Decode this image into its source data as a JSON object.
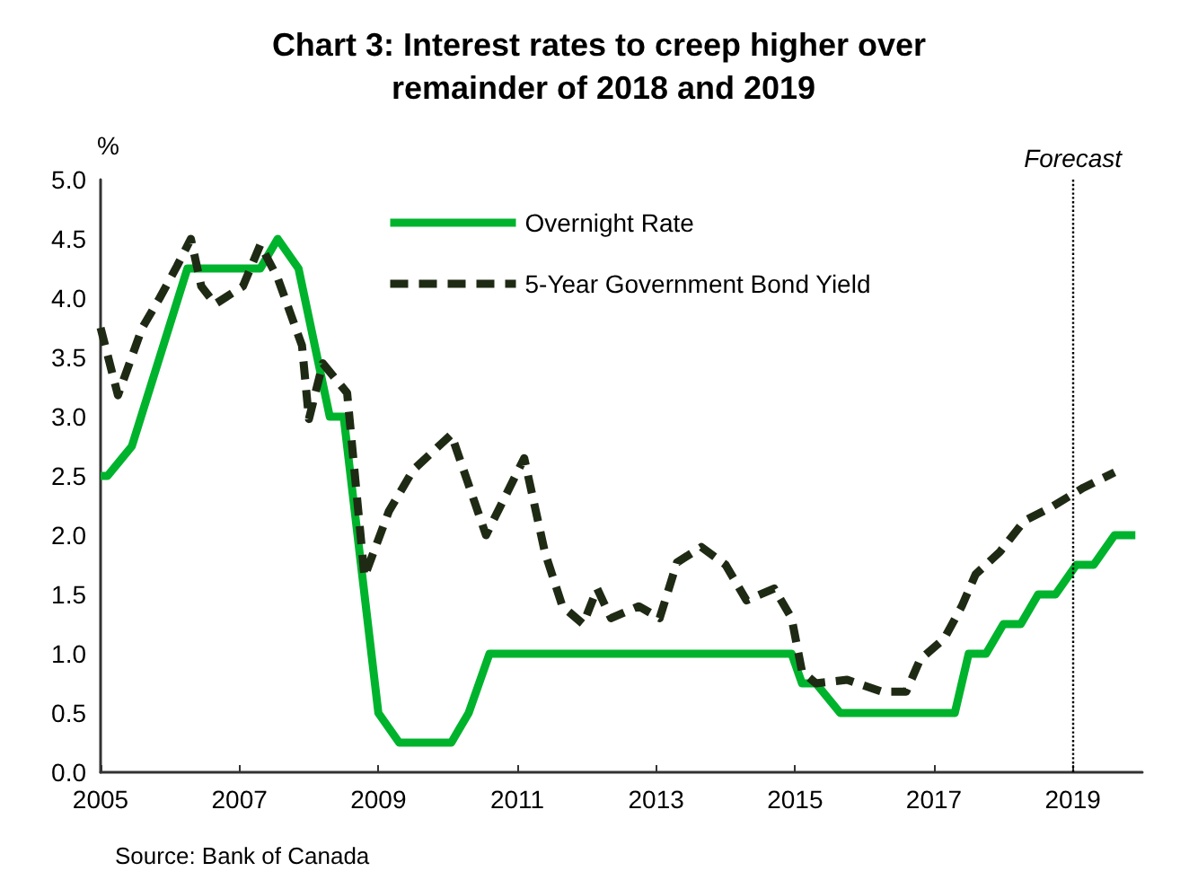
{
  "chart_data": {
    "type": "line",
    "title": "Chart 3: Interest rates to creep higher over remainder of 2018 and 2019",
    "ylabel": "%",
    "annotations": [
      "Source: Bank of Canada"
    ],
    "xlim": [
      2005,
      2020
    ],
    "xticks": [
      2005,
      2007,
      2009,
      2011,
      2013,
      2015,
      2017,
      2019
    ],
    "ylim": [
      0,
      5
    ],
    "yticks": [
      {
        "value": 0,
        "label": "0.0"
      },
      {
        "value": 0.5,
        "label": "0.5"
      },
      {
        "value": 1,
        "label": "1.0"
      },
      {
        "value": 1.5,
        "label": "1.5"
      },
      {
        "value": 2,
        "label": "2.0"
      },
      {
        "value": 2.5,
        "label": "2.5"
      },
      {
        "value": 3,
        "label": "3.0"
      },
      {
        "value": 3.5,
        "label": "3.5"
      },
      {
        "value": 4,
        "label": "4.0"
      },
      {
        "value": 4.5,
        "label": "4.5"
      },
      {
        "value": 5,
        "label": "5.0"
      }
    ],
    "grid": false,
    "legend": "top",
    "marker": "none",
    "ref_lines": [
      {
        "axis": "x",
        "value": 2019,
        "label": "Forecast",
        "color": "#000000",
        "line_style": "dotted"
      }
    ],
    "series": [
      {
        "name": "Overnight Rate",
        "color": "#00b32d",
        "line_style": "solid",
        "x": [
          2005,
          2005.1,
          2005.45,
          2006.25,
          2007.3,
          2007.55,
          2007.85,
          2008.3,
          2008.5,
          2009,
          2009.3,
          2010.05,
          2010.3,
          2010.6,
          2014.95,
          2015.1,
          2015.3,
          2015.65,
          2017.3,
          2017.5,
          2017.75,
          2018,
          2018.25,
          2018.5,
          2018.75,
          2019.05,
          2019.3,
          2019.6,
          2019.9
        ],
        "values": [
          2.5,
          2.5,
          2.75,
          4.25,
          4.25,
          4.5,
          4.25,
          3,
          3,
          0.5,
          0.25,
          0.25,
          0.5,
          1,
          1,
          0.75,
          0.75,
          0.5,
          0.5,
          1,
          1,
          1.25,
          1.25,
          1.5,
          1.5,
          1.75,
          1.75,
          2,
          2
        ]
      },
      {
        "name": "5-Year Government Bond Yield",
        "color": "#1f2a14",
        "line_style": "dashed",
        "x": [
          2005,
          2005.25,
          2005.6,
          2005.85,
          2006.1,
          2006.3,
          2006.45,
          2006.65,
          2007.05,
          2007.3,
          2007.55,
          2007.9,
          2008,
          2008.2,
          2008.55,
          2008.8,
          2009.15,
          2009.5,
          2010.05,
          2010.55,
          2011.1,
          2011.4,
          2011.65,
          2011.95,
          2012.15,
          2012.35,
          2012.75,
          2013.05,
          2013.3,
          2013.65,
          2014,
          2014.3,
          2014.7,
          2014.95,
          2015.1,
          2015.3,
          2015.75,
          2016.25,
          2016.6,
          2016.8,
          2017.15,
          2017.4,
          2017.6,
          2017.95,
          2018.3,
          2018.7,
          2019.15,
          2019.6
        ],
        "values": [
          3.75,
          3.18,
          3.75,
          4,
          4.27,
          4.5,
          4.1,
          3.95,
          4.1,
          4.45,
          4.17,
          3.6,
          2.98,
          3.45,
          3.2,
          1.65,
          2.2,
          2.55,
          2.85,
          2,
          2.65,
          1.85,
          1.4,
          1.25,
          1.55,
          1.3,
          1.4,
          1.3,
          1.77,
          1.9,
          1.75,
          1.45,
          1.55,
          1.3,
          0.85,
          0.75,
          0.78,
          0.68,
          0.68,
          0.95,
          1.13,
          1.4,
          1.67,
          1.86,
          2.12,
          2.24,
          2.4,
          2.53
        ]
      }
    ]
  }
}
